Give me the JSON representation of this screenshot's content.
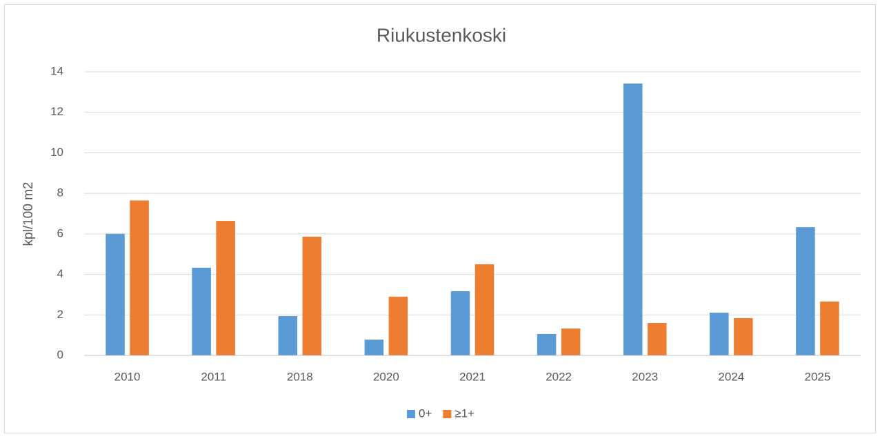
{
  "chart_data": {
    "type": "bar",
    "title": "Riukustenkoski",
    "y_label": "kpl/100 m2",
    "categories": [
      "2010",
      "2011",
      "2018",
      "2020",
      "2021",
      "2022",
      "2023",
      "2024",
      "2025"
    ],
    "series": [
      {
        "name": "0+",
        "color": "#5b9bd5",
        "values": [
          6.0,
          4.33,
          1.94,
          0.78,
          3.17,
          1.06,
          13.42,
          2.11,
          6.33
        ]
      },
      {
        "name": "≥1+",
        "color": "#ed7d31",
        "values": [
          7.65,
          6.64,
          5.86,
          2.9,
          4.5,
          1.33,
          1.6,
          1.84,
          2.66
        ]
      }
    ],
    "ylim": [
      0,
      14
    ],
    "yticks": [
      0,
      2,
      4,
      6,
      8,
      10,
      12,
      14
    ],
    "grid": true,
    "legend": "bottom"
  }
}
